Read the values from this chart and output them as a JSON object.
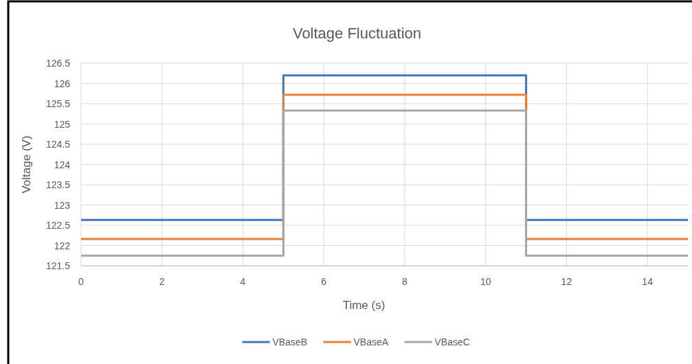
{
  "chart_data": {
    "type": "line",
    "title": "Voltage Fluctuation",
    "xlabel": "Time (s)",
    "ylabel": "Voltage (V)",
    "x": [
      0,
      5,
      5,
      11,
      11,
      15
    ],
    "series": [
      {
        "name": "VBaseB",
        "color": "#4472c4",
        "values": [
          122.63,
          122.63,
          126.2,
          126.2,
          122.63,
          122.63
        ]
      },
      {
        "name": "VBaseA",
        "color": "#ed7d31",
        "values": [
          122.16,
          122.16,
          125.72,
          125.72,
          122.16,
          122.16
        ]
      },
      {
        "name": "VBaseC",
        "color": "#a5a5a5",
        "values": [
          121.75,
          121.75,
          125.33,
          125.33,
          121.75,
          121.75
        ]
      }
    ],
    "xlim": [
      0,
      15
    ],
    "xticks": [
      0,
      2,
      4,
      6,
      8,
      10,
      12,
      14
    ],
    "ylim": [
      121.5,
      126.5
    ],
    "yticks": [
      121.5,
      122,
      122.5,
      123,
      123.5,
      124,
      124.5,
      125,
      125.5,
      126,
      126.5
    ],
    "grid": true,
    "legend": "bottom",
    "marker": "none",
    "line_style": "solid"
  }
}
